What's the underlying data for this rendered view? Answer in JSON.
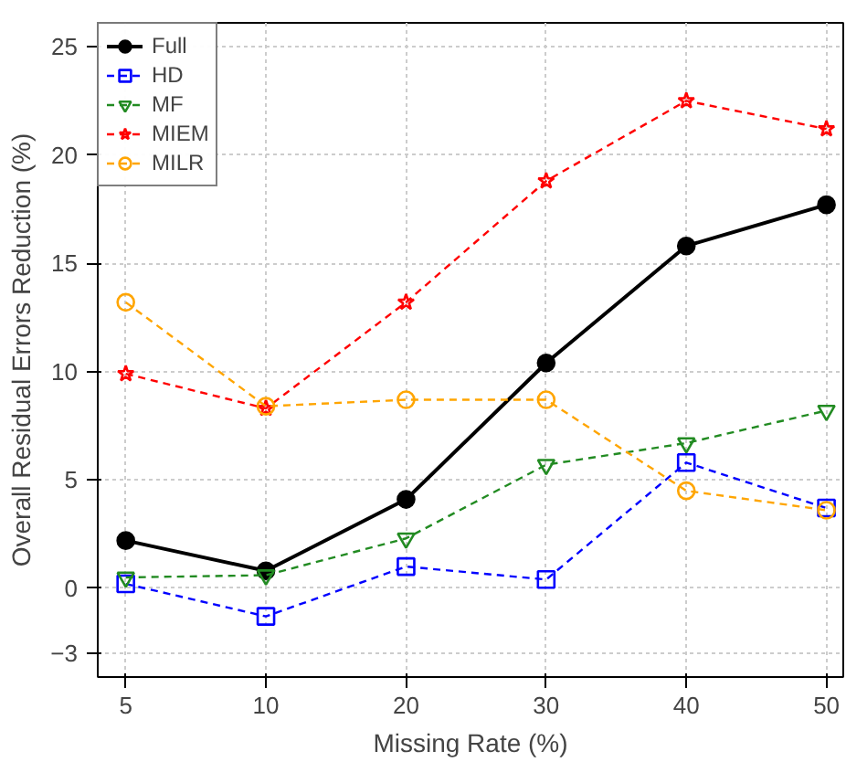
{
  "chart_data": {
    "type": "line",
    "xlabel": "Missing Rate (%)",
    "ylabel": "Overall Residual Errors Reduction (%)",
    "categories": [
      "5",
      "10",
      "20",
      "30",
      "40",
      "50"
    ],
    "ylim": [
      -4.1,
      26.1
    ],
    "yticks": [
      -3,
      0,
      5,
      10,
      15,
      20,
      25
    ],
    "grid": true,
    "legend": "top left",
    "series": [
      {
        "name": "Full",
        "color": "#000000",
        "marker": "circle",
        "line_style": "solid",
        "values": [
          2.2,
          0.8,
          4.1,
          10.4,
          15.8,
          17.7
        ]
      },
      {
        "name": "HD",
        "color": "#0000ff",
        "marker": "square",
        "line_style": "dashed",
        "values": [
          0.2,
          -1.3,
          1.0,
          0.4,
          5.8,
          3.7
        ]
      },
      {
        "name": "MF",
        "color": "#228b22",
        "marker": "triangle",
        "line_style": "dashed",
        "values": [
          0.5,
          0.6,
          2.3,
          5.7,
          6.7,
          8.2
        ]
      },
      {
        "name": "MIEM",
        "color": "#ff0000",
        "marker": "star",
        "line_style": "dashed",
        "values": [
          9.9,
          8.3,
          13.2,
          18.8,
          22.5,
          21.2
        ]
      },
      {
        "name": "MILR",
        "color": "#ffa500",
        "marker": "circle",
        "line_style": "dashed",
        "values": [
          13.2,
          8.4,
          8.7,
          8.7,
          4.5,
          3.6
        ]
      }
    ]
  }
}
